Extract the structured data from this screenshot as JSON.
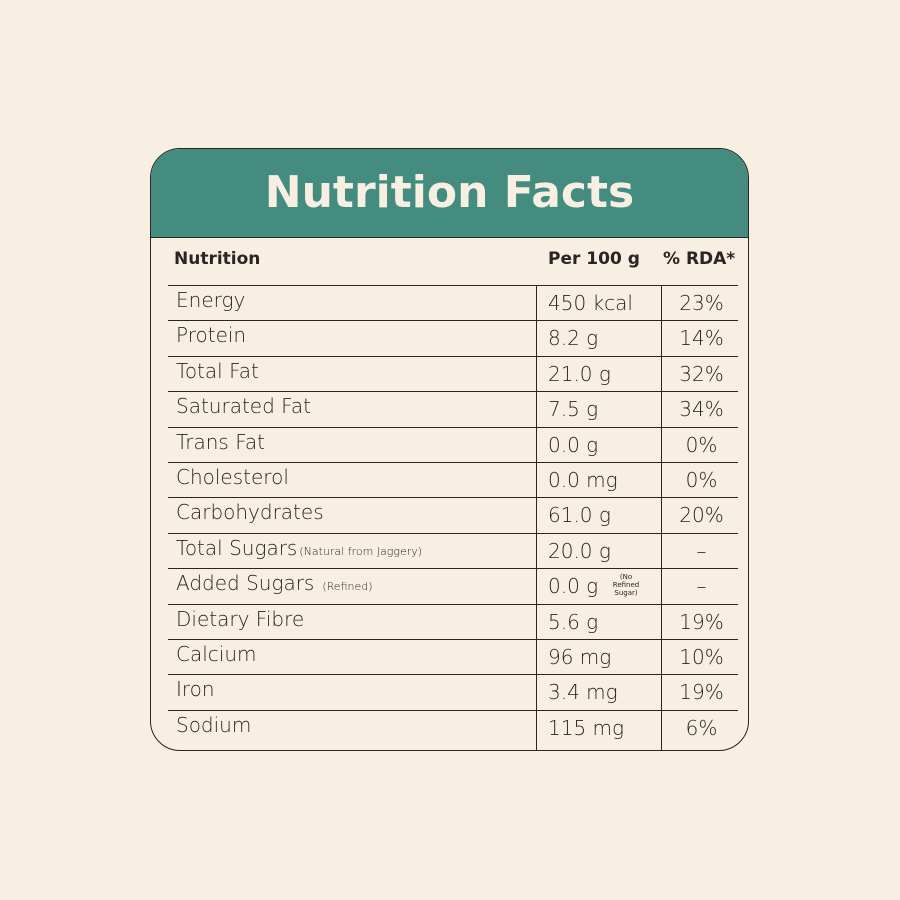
{
  "title": "Nutrition Facts",
  "table": {
    "headers": [
      "Nutrition",
      "Per 100 g",
      "% RDA*"
    ],
    "rows": [
      {
        "name": "Energy",
        "amount": "450 kcal",
        "rda": "23%"
      },
      {
        "name": "Protein",
        "amount": "8.2 g",
        "rda": "14%"
      },
      {
        "name": "Total Fat",
        "amount": "21.0 g",
        "rda": "32%"
      },
      {
        "name": "Saturated Fat",
        "amount": "7.5 g",
        "rda": "34%"
      },
      {
        "name": "Trans Fat",
        "amount": "0.0 g",
        "rda": "0%"
      },
      {
        "name": "Cholesterol",
        "amount": "0.0 mg",
        "rda": "0%"
      },
      {
        "name": "Carbohydrates",
        "amount": "61.0 g",
        "rda": "20%"
      },
      {
        "name": "Total Sugars",
        "note": "(Natural from Jaggery)",
        "amount": "20.0 g",
        "rda": "–"
      },
      {
        "name": "Added Sugars",
        "note": "(Refined)",
        "amount": "0.0 g",
        "amount_note": "(No Refined Sugar)",
        "rda": "–"
      },
      {
        "name": "Dietary Fibre",
        "amount": "5.6 g",
        "rda": "19%"
      },
      {
        "name": "Calcium",
        "amount": "96 mg",
        "rda": "10%"
      },
      {
        "name": "Iron",
        "amount": "3.4 mg",
        "rda": "19%"
      },
      {
        "name": "Sodium",
        "amount": "115 mg",
        "rda": "6%"
      }
    ]
  }
}
